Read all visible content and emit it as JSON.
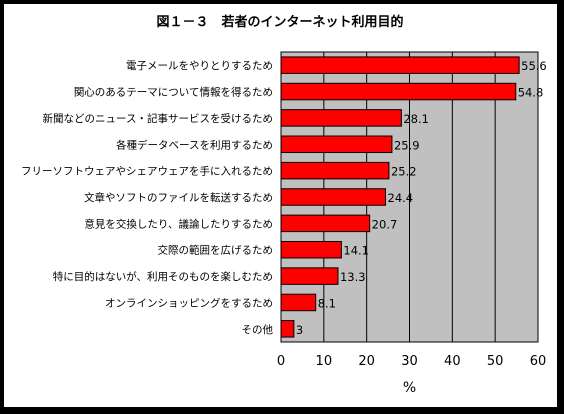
{
  "chart_data": {
    "type": "bar",
    "orientation": "horizontal",
    "title": "図１－３　若者のインターネット利用目的",
    "xlabel": "%",
    "ylabel": "",
    "xlim": [
      0,
      60
    ],
    "x_ticks": [
      0,
      10,
      20,
      30,
      40,
      50,
      60
    ],
    "grid": true,
    "plot_background": "#c0c0c0",
    "bar_color": "#ff0000",
    "categories": [
      "電子メールをやりとりするため",
      "関心のあるテーマについて情報を得るため",
      "新聞などのニュース・記事サービスを受けるため",
      "各種データベースを利用するため",
      "フリーソフトウェアやシェアウェアを手に入れるため",
      "文章やソフトのファイルを転送するため",
      "意見を交換したり、議論したりするため",
      "交際の範囲を広げるため",
      "特に目的はないが、利用そのものを楽しむため",
      "オンラインショッピングをするため",
      "その他"
    ],
    "values": [
      55.6,
      54.8,
      28.1,
      25.9,
      25.2,
      24.4,
      20.7,
      14.1,
      13.3,
      8.1,
      3
    ]
  }
}
